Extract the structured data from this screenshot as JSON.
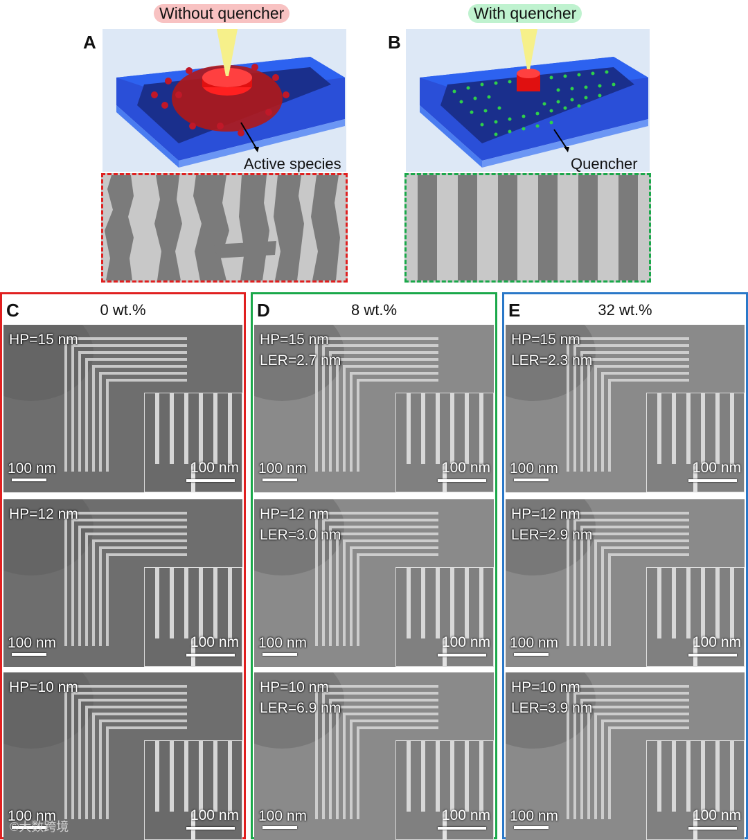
{
  "panels": {
    "A": {
      "letter": "A",
      "title": "Without quencher",
      "callout": "Active species"
    },
    "B": {
      "letter": "B",
      "title": "With quencher",
      "callout": "Quencher"
    }
  },
  "columns": [
    {
      "letter": "C",
      "title": "0 wt.%",
      "rows": [
        {
          "hp": "HP=15 nm",
          "ler": "",
          "scale": "100 nm",
          "inset_scale": "100 nm"
        },
        {
          "hp": "HP=12 nm",
          "ler": "",
          "scale": "100 nm",
          "inset_scale": "100 nm"
        },
        {
          "hp": "HP=10 nm",
          "ler": "",
          "scale": "100 nm",
          "inset_scale": "100 nm"
        }
      ]
    },
    {
      "letter": "D",
      "title": "8 wt.%",
      "rows": [
        {
          "hp": "HP=15 nm",
          "ler": "LER=2.7 nm",
          "scale": "100 nm",
          "inset_scale": "100 nm"
        },
        {
          "hp": "HP=12 nm",
          "ler": "LER=3.0 nm",
          "scale": "100 nm",
          "inset_scale": "100 nm"
        },
        {
          "hp": "HP=10 nm",
          "ler": "LER=6.9 nm",
          "scale": "100 nm",
          "inset_scale": "100 nm"
        }
      ]
    },
    {
      "letter": "E",
      "title": "32 wt.%",
      "rows": [
        {
          "hp": "HP=15 nm",
          "ler": "LER=2.3 nm",
          "scale": "100 nm",
          "inset_scale": "100 nm"
        },
        {
          "hp": "HP=12 nm",
          "ler": "LER=2.9 nm",
          "scale": "100 nm",
          "inset_scale": "100 nm"
        },
        {
          "hp": "HP=10 nm",
          "ler": "LER=3.9 nm",
          "scale": "100 nm",
          "inset_scale": "100 nm"
        }
      ]
    }
  ],
  "watermark": "©大数跨境",
  "colors": {
    "red": "#e02020",
    "green": "#1aa84a",
    "blue": "#2a78c8",
    "pill_red": "#f6b4b4",
    "pill_green": "#b8f0c8"
  }
}
